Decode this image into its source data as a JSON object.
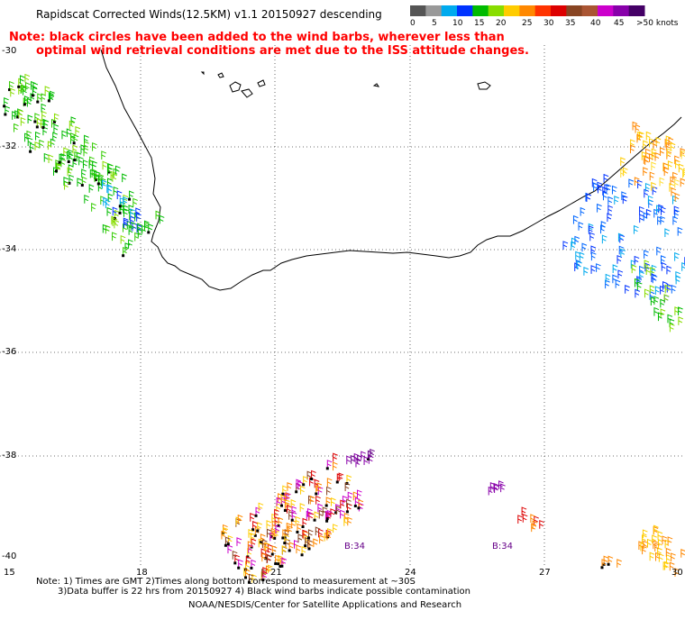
{
  "header": {
    "title": "Rapidscat Corrected Winds(12.5KM) v1.1 20150927 descending",
    "note_line1": "Note: black circles have been added to the wind barbs, wherever less than",
    "note_line2": "optimal wind retrieval conditions are met due to the ISS attitude changes."
  },
  "legend": {
    "colors": [
      "#555555",
      "#999999",
      "#00aaee",
      "#0033ff",
      "#00bb00",
      "#88dd00",
      "#ffcc00",
      "#ff8800",
      "#ff3300",
      "#dd0000",
      "#884422",
      "#aa5533",
      "#cc00cc",
      "#8800aa",
      "#440066"
    ],
    "labels": [
      "0",
      "5",
      "10",
      "15",
      "20",
      "25",
      "30",
      "35",
      "40",
      "45",
      ">50 knots"
    ]
  },
  "axes": {
    "latitudes": [
      "-30",
      "-32",
      "-34",
      "-36",
      "-38",
      "-40"
    ],
    "longitudes": [
      "15",
      "18",
      "21",
      "24",
      "27",
      "30"
    ]
  },
  "annotations": {
    "time_label_1": "B:34",
    "time_label_2": "B:34"
  },
  "footer": {
    "note_line1": "Note: 1) Times are GMT 2)Times along bottom correspond to measurement at ~30S",
    "note_line2": "3)Data buffer is 22 hrs from 20150927 4) Black wind barbs indicate possible contamination",
    "credit": "NOAA/NESDIS/Center for Satellite Applications and Research"
  }
}
